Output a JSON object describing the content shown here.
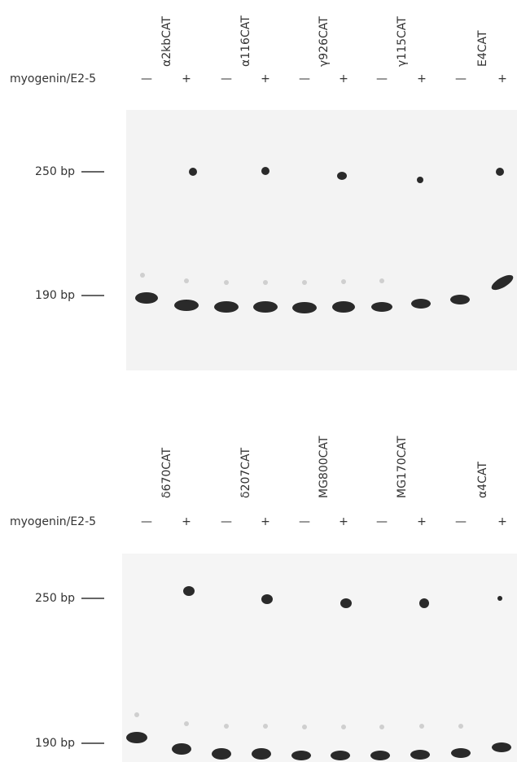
{
  "panels": [
    {
      "constructs": [
        "α2kbCAT",
        "α116CAT",
        "γ926CAT",
        "γ115CAT",
        "E4CAT"
      ],
      "row_label": "myogenin/E2-5",
      "lanes": [
        "—",
        "+",
        "—",
        "+",
        "—",
        "+",
        "—",
        "+",
        "—",
        "+"
      ],
      "markers": [
        "250 bp",
        "190 bp"
      ]
    },
    {
      "constructs": [
        "δ670CAT",
        "δ207CAT",
        "MG800CAT",
        "MG170CAT",
        "α4CAT"
      ],
      "row_label": "myogenin/E2-5",
      "lanes": [
        "—",
        "+",
        "—",
        "+",
        "—",
        "+",
        "—",
        "+",
        "—",
        "+"
      ],
      "markers": [
        "250 bp",
        "190 bp"
      ]
    }
  ]
}
